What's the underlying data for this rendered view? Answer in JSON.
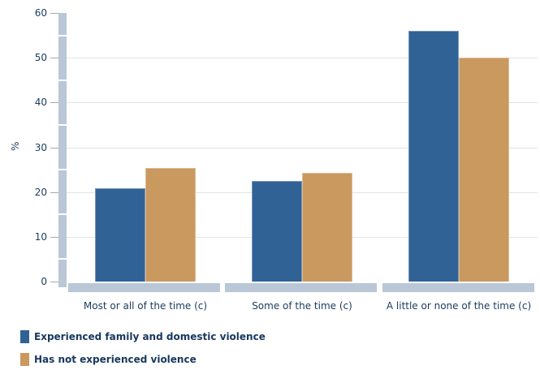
{
  "chart_data": {
    "type": "bar",
    "title": "",
    "ylabel": "%",
    "xlabel": "",
    "ylim": [
      0,
      60
    ],
    "y_ticks": [
      0,
      10,
      20,
      30,
      40,
      50,
      60
    ],
    "grid": "horizontal",
    "gridline_color": "#e3e3e3",
    "axis_band_color": "#b9c7d7",
    "text_color": "#1b3a5f",
    "legend_position": "bottom-left",
    "categories": [
      "Most or all of the time (c)",
      "Some of the time (c)",
      "A little or none of the time (c)"
    ],
    "series": [
      {
        "name": "Experienced family and domestic violence",
        "color": "#316296",
        "values": [
          20.8,
          22.5,
          56.0
        ]
      },
      {
        "name": "Has not experienced violence",
        "color": "#c9995f",
        "values": [
          25.3,
          24.2,
          50.1
        ]
      }
    ]
  }
}
